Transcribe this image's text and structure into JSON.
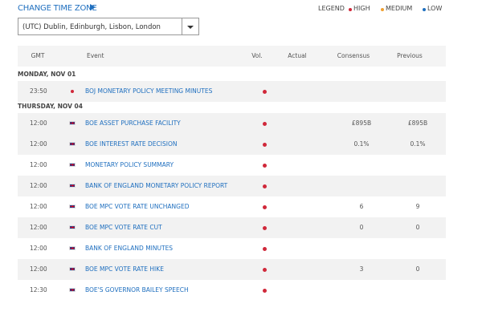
{
  "header": {
    "change_time_zone": "CHANGE TIME ZONE",
    "legend": {
      "title": "LEGEND",
      "items": [
        "HIGH",
        "MEDIUM",
        "LOW"
      ]
    },
    "time_zone": "(UTC) Dublin, Edinburgh, Lisbon, London"
  },
  "table": {
    "columns": [
      "GMT",
      "Event",
      "Vol.",
      "Actual",
      "Consensus",
      "Previous"
    ],
    "groups": [
      {
        "date": "MONDAY, NOV 01",
        "rows": [
          {
            "time": "23:50",
            "event": "BOJ MONETARY POLICY MEETING MINUTES",
            "consensus": null,
            "previous": null
          }
        ]
      },
      {
        "date": "THURSDAY, NOV 04",
        "rows": [
          {
            "time": "12:00",
            "event": "BOE ASSET PURCHASE FACILITY",
            "consensus": "£895B",
            "previous": "£895B"
          },
          {
            "time": "12:00",
            "event": "BOE INTEREST RATE DECISION",
            "consensus": "0.1%",
            "previous": "0.1%"
          },
          {
            "time": "12:00",
            "event": "MONETARY POLICY SUMMARY",
            "consensus": null,
            "previous": null
          },
          {
            "time": "12:00",
            "event": "BANK OF ENGLAND MONETARY POLICY REPORT",
            "consensus": null,
            "previous": null
          },
          {
            "time": "12:00",
            "event": "BOE MPC VOTE RATE UNCHANGED",
            "consensus": "6",
            "previous": "9"
          },
          {
            "time": "12:00",
            "event": "BOE MPC VOTE RATE CUT",
            "consensus": "0",
            "previous": "0"
          },
          {
            "time": "12:00",
            "event": "BANK OF ENGLAND MINUTES",
            "consensus": null,
            "previous": null
          },
          {
            "time": "12:00",
            "event": "BOE MPC VOTE RATE HIKE",
            "consensus": "3",
            "previous": "0"
          },
          {
            "time": "12:30",
            "event": "BOE'S GOVERNOR BAILEY SPEECH",
            "consensus": null,
            "previous": null
          }
        ]
      }
    ]
  }
}
